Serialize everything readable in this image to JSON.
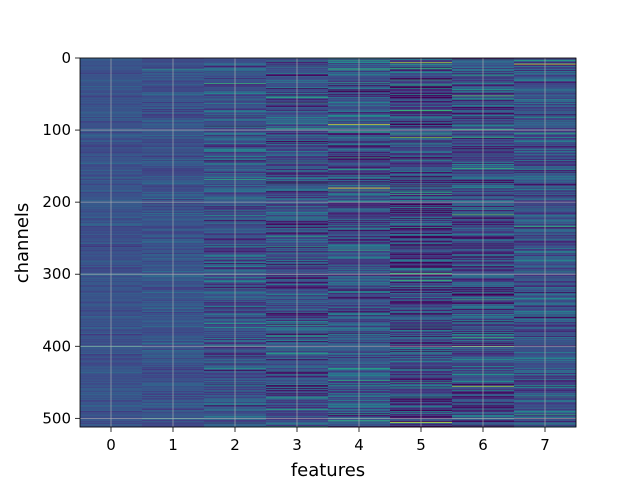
{
  "chart_data": {
    "type": "heatmap",
    "title": "",
    "xlabel": "features",
    "ylabel": "channels",
    "x_categories": [
      "0",
      "1",
      "2",
      "3",
      "4",
      "5",
      "6",
      "7"
    ],
    "xlim": [
      -0.5,
      7.5
    ],
    "ylim": [
      512,
      0
    ],
    "yticks": [
      0,
      100,
      200,
      300,
      400,
      500
    ],
    "n_rows": 512,
    "n_cols": 8,
    "colormap": "viridis",
    "grid": true,
    "grid_color": "#b0b0b0",
    "column_mean_level": [
      0.32,
      0.32,
      0.33,
      0.31,
      0.33,
      0.27,
      0.3,
      0.33
    ],
    "column_variation": [
      0.05,
      0.07,
      0.13,
      0.16,
      0.16,
      0.2,
      0.18,
      0.14
    ],
    "highlights": [
      {
        "col": 0,
        "row": 166,
        "level": 0.55
      },
      {
        "col": 0,
        "row": 400,
        "level": 0.6
      },
      {
        "col": 1,
        "row": 15,
        "level": 0.65
      },
      {
        "col": 1,
        "row": 500,
        "level": 0.6
      },
      {
        "col": 2,
        "row": 35,
        "level": 0.75
      },
      {
        "col": 2,
        "row": 168,
        "level": 0.7
      },
      {
        "col": 2,
        "row": 430,
        "level": 0.65
      },
      {
        "col": 3,
        "row": 97,
        "level": 0.7
      },
      {
        "col": 3,
        "row": 487,
        "level": 0.7
      },
      {
        "col": 4,
        "row": 15,
        "level": 0.75
      },
      {
        "col": 4,
        "row": 92,
        "level": 0.95
      },
      {
        "col": 4,
        "row": 180,
        "level": 1.0
      },
      {
        "col": 4,
        "row": 138,
        "level": 0.7
      },
      {
        "col": 5,
        "row": 6,
        "level": 0.9
      },
      {
        "col": 5,
        "row": 110,
        "level": 0.85
      },
      {
        "col": 5,
        "row": 298,
        "level": 0.75
      },
      {
        "col": 5,
        "row": 505,
        "level": 0.95
      },
      {
        "col": 5,
        "row": 325,
        "level": 0.0
      },
      {
        "col": 5,
        "row": 258,
        "level": 0.0
      },
      {
        "col": 6,
        "row": 52,
        "level": 0.8
      },
      {
        "col": 6,
        "row": 153,
        "level": 0.75
      },
      {
        "col": 6,
        "row": 217,
        "level": 0.8
      },
      {
        "col": 6,
        "row": 335,
        "level": 0.75
      },
      {
        "col": 6,
        "row": 400,
        "level": 0.8
      },
      {
        "col": 6,
        "row": 455,
        "level": 0.9
      },
      {
        "col": 7,
        "row": 8,
        "level": 0.95
      },
      {
        "col": 7,
        "row": 104,
        "level": 0.7
      },
      {
        "col": 7,
        "row": 233,
        "level": 0.75
      },
      {
        "col": 7,
        "row": 470,
        "level": 0.65
      }
    ]
  }
}
